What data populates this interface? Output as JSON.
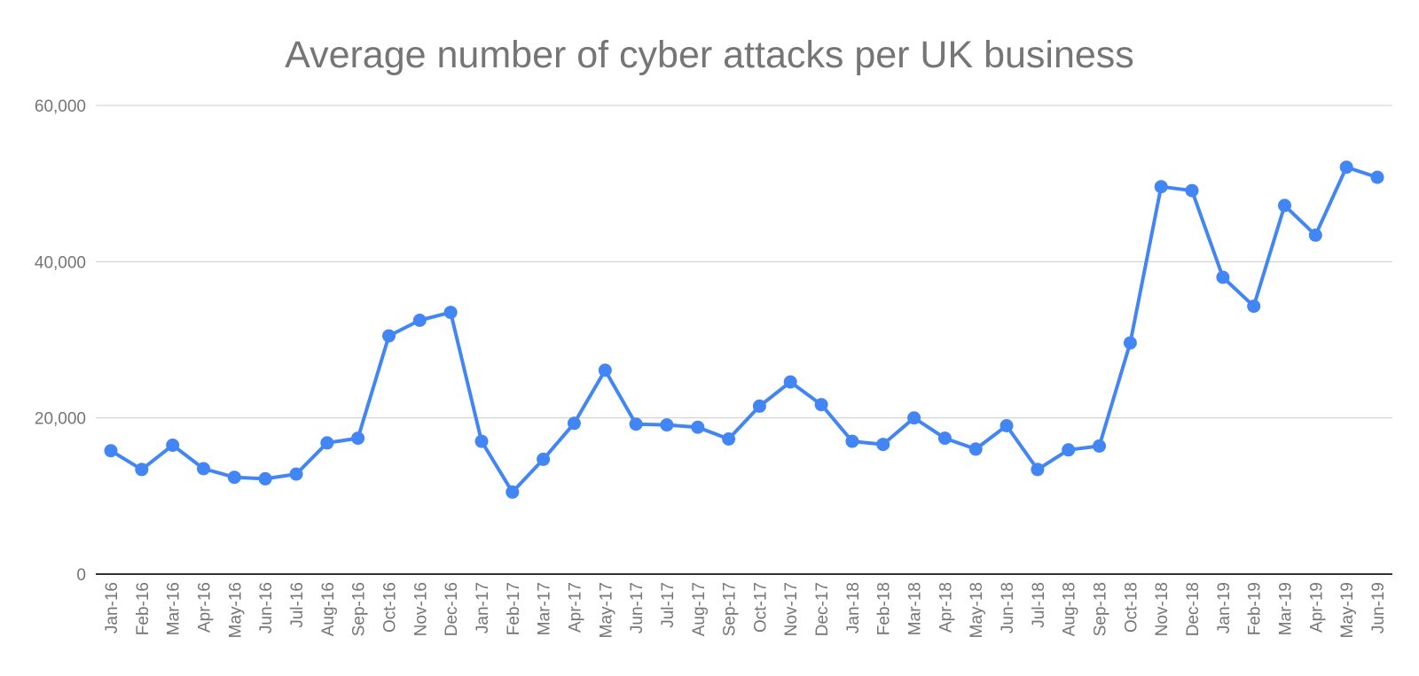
{
  "chart_data": {
    "type": "line",
    "title": "Average number of cyber attacks per UK business",
    "xlabel": "",
    "ylabel": "",
    "ylim": [
      0,
      60000
    ],
    "grid": true,
    "legend": "none",
    "ytick_values": [
      0,
      20000,
      40000,
      60000
    ],
    "ytick_labels": [
      "0",
      "20,000",
      "40,000",
      "60,000"
    ],
    "categories": [
      "Jan-16",
      "Feb-16",
      "Mar-16",
      "Apr-16",
      "May-16",
      "Jun-16",
      "Jul-16",
      "Aug-16",
      "Sep-16",
      "Oct-16",
      "Nov-16",
      "Dec-16",
      "Jan-17",
      "Feb-17",
      "Mar-17",
      "Apr-17",
      "May-17",
      "Jun-17",
      "Jul-17",
      "Aug-17",
      "Sep-17",
      "Oct-17",
      "Nov-17",
      "Dec-17",
      "Jan-18",
      "Feb-18",
      "Mar-18",
      "Apr-18",
      "May-18",
      "Jun-18",
      "Jul-18",
      "Aug-18",
      "Sep-18",
      "Oct-18",
      "Nov-18",
      "Dec-18",
      "Jan-19",
      "Feb-19",
      "Mar-19",
      "Apr-19",
      "May-19",
      "Jun-19"
    ],
    "values": [
      15800,
      13400,
      16500,
      13500,
      12400,
      12200,
      12800,
      16800,
      17400,
      30500,
      32500,
      33500,
      17000,
      10500,
      14700,
      19300,
      26100,
      19200,
      19100,
      18800,
      17300,
      21500,
      24600,
      21700,
      17000,
      16600,
      20000,
      17400,
      16000,
      19000,
      13400,
      15900,
      16400,
      29600,
      49600,
      49100,
      38000,
      34300,
      47200,
      43400,
      52100,
      50800
    ],
    "colors": {
      "series": "#4285f4",
      "gridline": "#cccccc",
      "axis": "#333333",
      "text": "#757575",
      "background": "#ffffff"
    }
  }
}
